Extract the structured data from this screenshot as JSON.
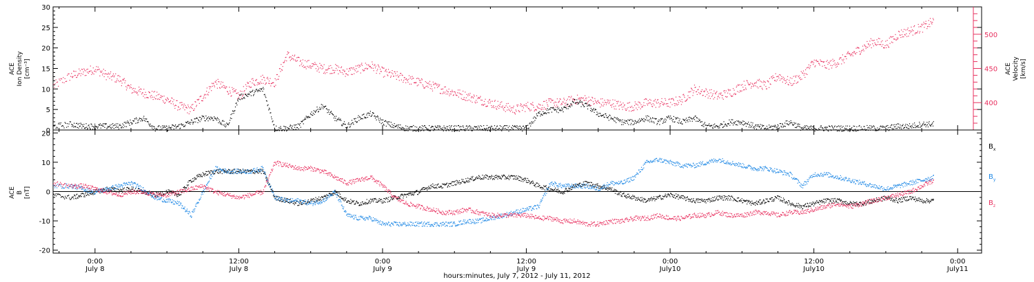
{
  "colors": {
    "black": "#000000",
    "pink": "#e8305f",
    "blue": "#1e88e5"
  },
  "xaxis": {
    "title": "hours:minutes, July  7, 2012 - July 11, 2012",
    "ticks": [
      {
        "t": 0,
        "time": "0:00",
        "date": "July 8"
      },
      {
        "t": 12,
        "time": "12:00",
        "date": "July 8"
      },
      {
        "t": 24,
        "time": "0:00",
        "date": "July 9"
      },
      {
        "t": 36,
        "time": "12:00",
        "date": "July 9"
      },
      {
        "t": 48,
        "time": "0:00",
        "date": "July10"
      },
      {
        "t": 60,
        "time": "12:00",
        "date": "July10"
      },
      {
        "t": 72,
        "time": "0:00",
        "date": "July11"
      }
    ],
    "range": [
      -3.5,
      74.0
    ]
  },
  "chart_data": [
    {
      "type": "scatter",
      "panel": "top",
      "ylabel_lines": [
        "ACE",
        "Ion Density",
        "[cm⁻³]"
      ],
      "ylim": [
        0,
        30
      ],
      "yticks": [
        0,
        5,
        10,
        15,
        20,
        25,
        30
      ],
      "y2label_lines": [
        "ACE",
        "Velocity",
        "[km/s]"
      ],
      "y2lim": [
        360,
        540
      ],
      "y2ticks": [
        400,
        450,
        500
      ],
      "series": [
        {
          "axis": "left",
          "color": "black",
          "x": [
            -3.5,
            -2,
            -1,
            0,
            1,
            2,
            3,
            4,
            5,
            6,
            7,
            8,
            9,
            10,
            11,
            12,
            13,
            14,
            15,
            16,
            17,
            18,
            19,
            20,
            21,
            22,
            23,
            24,
            25,
            26,
            27,
            28,
            29,
            30,
            31,
            32,
            33,
            34,
            35,
            36,
            37,
            38,
            39,
            40,
            41,
            42,
            43,
            44,
            45,
            46,
            47,
            48,
            49,
            50,
            51,
            52,
            53,
            54,
            55,
            56,
            57,
            58,
            59,
            60,
            61,
            62,
            63,
            64,
            65,
            66,
            67,
            68,
            69,
            70
          ],
          "y": [
            1,
            1.5,
            1,
            1,
            1,
            1,
            2,
            3,
            0.5,
            0.5,
            1,
            2,
            3,
            3,
            1,
            8,
            9,
            10,
            0.5,
            0.5,
            1,
            4,
            6,
            3,
            1,
            3,
            4,
            2,
            1,
            0.5,
            0.5,
            0.5,
            0.5,
            0.5,
            0.5,
            0.5,
            0.5,
            0.5,
            0.5,
            0.5,
            4,
            5,
            5,
            7,
            6,
            4,
            3,
            2,
            2,
            3,
            2,
            3,
            2,
            3,
            1,
            1,
            2,
            2,
            1,
            0.5,
            1,
            2,
            0.5,
            0.5,
            0.5,
            0.5,
            0.5,
            0.5,
            0.5,
            0.5,
            1,
            1,
            1.5,
            1.5
          ]
        },
        {
          "axis": "right",
          "color": "pink",
          "x": [
            -3.5,
            -2,
            -1,
            0,
            1,
            2,
            3,
            4,
            5,
            6,
            7,
            8,
            9,
            10,
            11,
            12,
            13,
            14,
            15,
            16,
            17,
            18,
            19,
            20,
            21,
            22,
            23,
            24,
            25,
            26,
            27,
            28,
            29,
            30,
            31,
            32,
            33,
            34,
            35,
            36,
            37,
            38,
            39,
            40,
            41,
            42,
            43,
            44,
            45,
            46,
            47,
            48,
            49,
            50,
            51,
            52,
            53,
            54,
            55,
            56,
            57,
            58,
            59,
            60,
            61,
            62,
            63,
            64,
            65,
            66,
            67,
            68,
            69,
            70
          ],
          "y": [
            425,
            440,
            445,
            450,
            440,
            435,
            420,
            415,
            410,
            405,
            395,
            390,
            410,
            430,
            420,
            410,
            430,
            435,
            430,
            470,
            460,
            455,
            450,
            450,
            445,
            450,
            455,
            445,
            440,
            435,
            430,
            425,
            420,
            415,
            410,
            405,
            400,
            395,
            390,
            395,
            395,
            400,
            400,
            405,
            405,
            400,
            400,
            395,
            395,
            400,
            400,
            400,
            405,
            420,
            415,
            410,
            415,
            425,
            430,
            425,
            440,
            430,
            440,
            460,
            455,
            460,
            470,
            480,
            490,
            485,
            500,
            505,
            510,
            520
          ]
        }
      ]
    },
    {
      "type": "scatter",
      "panel": "bottom",
      "ylabel_lines": [
        "ACE",
        "B",
        "[nT]"
      ],
      "ylim": [
        -21,
        21
      ],
      "yticks": [
        -20,
        -10,
        0,
        10,
        20
      ],
      "legend_position": "right",
      "series": [
        {
          "name": "Bx",
          "color": "black",
          "x": [
            -3.5,
            -2,
            -1,
            0,
            1,
            2,
            3,
            4,
            5,
            6,
            7,
            8,
            9,
            10,
            11,
            12,
            13,
            14,
            15,
            16,
            17,
            18,
            19,
            20,
            21,
            22,
            23,
            24,
            25,
            26,
            27,
            28,
            29,
            30,
            31,
            32,
            33,
            34,
            35,
            36,
            37,
            38,
            39,
            40,
            41,
            42,
            43,
            44,
            45,
            46,
            47,
            48,
            49,
            50,
            51,
            52,
            53,
            54,
            55,
            56,
            57,
            58,
            59,
            60,
            61,
            62,
            63,
            64,
            65,
            66,
            67,
            68,
            69,
            70
          ],
          "y": [
            -1,
            -2,
            -1,
            0,
            1,
            0.5,
            1,
            0,
            -1,
            0,
            -1,
            4,
            6,
            7,
            7,
            7,
            7,
            7,
            -2,
            -3,
            -4,
            -3,
            -2,
            0,
            -3,
            -4,
            -3,
            -3,
            -2,
            -1,
            0,
            2,
            2,
            3,
            4,
            5,
            5,
            5,
            5,
            4,
            2,
            1,
            0,
            2,
            3,
            2,
            1,
            -1,
            -2,
            -3,
            -2,
            -1,
            -2,
            -3,
            -3,
            -2,
            -2,
            -3,
            -4,
            -3,
            -2,
            -4,
            -5,
            -4,
            -3,
            -3,
            -4,
            -4,
            -3,
            -2,
            -3,
            -2,
            -3,
            -3
          ]
        },
        {
          "name": "By",
          "color": "blue",
          "x": [
            -3.5,
            -2,
            -1,
            0,
            1,
            2,
            3,
            4,
            5,
            6,
            7,
            8,
            9,
            10,
            11,
            12,
            13,
            14,
            15,
            16,
            17,
            18,
            19,
            20,
            21,
            22,
            23,
            24,
            25,
            26,
            27,
            28,
            29,
            30,
            31,
            32,
            33,
            34,
            35,
            36,
            37,
            38,
            39,
            40,
            41,
            42,
            43,
            44,
            45,
            46,
            47,
            48,
            49,
            50,
            51,
            52,
            53,
            54,
            55,
            56,
            57,
            58,
            59,
            60,
            61,
            62,
            63,
            64,
            65,
            66,
            67,
            68,
            69,
            70
          ],
          "y": [
            2,
            2,
            1,
            0,
            1,
            2,
            3,
            1,
            -2,
            -3,
            -4,
            -8,
            0,
            8,
            7,
            7,
            7,
            8,
            -2,
            -3,
            -3,
            -4,
            -3,
            0,
            -8,
            -9,
            -9,
            -11,
            -11,
            -11,
            -11,
            -11,
            -11,
            -11,
            -10,
            -10,
            -9,
            -8,
            -7,
            -6,
            -5,
            3,
            2,
            2,
            2,
            1,
            3,
            3,
            5,
            10,
            11,
            10,
            9,
            9,
            10,
            11,
            10,
            9,
            8,
            8,
            7,
            6,
            2,
            6,
            6,
            5,
            4,
            3,
            2,
            1,
            2,
            3,
            4,
            5
          ]
        },
        {
          "name": "Bz",
          "color": "pink",
          "x": [
            -3.5,
            -2,
            -1,
            0,
            1,
            2,
            3,
            4,
            5,
            6,
            7,
            8,
            9,
            10,
            11,
            12,
            13,
            14,
            15,
            16,
            17,
            18,
            19,
            20,
            21,
            22,
            23,
            24,
            25,
            26,
            27,
            28,
            29,
            30,
            31,
            32,
            33,
            34,
            35,
            36,
            37,
            38,
            39,
            40,
            41,
            42,
            43,
            44,
            45,
            46,
            47,
            48,
            49,
            50,
            51,
            52,
            53,
            54,
            55,
            56,
            57,
            58,
            59,
            60,
            61,
            62,
            63,
            64,
            65,
            66,
            67,
            68,
            69,
            70
          ],
          "y": [
            3,
            2,
            2,
            1,
            0,
            -1,
            0,
            0,
            -1,
            -1,
            0,
            1,
            2,
            0,
            -1,
            -2,
            -1,
            0,
            10,
            9,
            8,
            8,
            7,
            5,
            3,
            4,
            5,
            2,
            -2,
            -4,
            -5,
            -6,
            -7,
            -7,
            -6,
            -7,
            -8,
            -8,
            -8,
            -8,
            -9,
            -9,
            -10,
            -10,
            -11,
            -11,
            -10,
            -10,
            -9,
            -9,
            -8,
            -9,
            -9,
            -8,
            -8,
            -7,
            -8,
            -8,
            -7,
            -7,
            -8,
            -7,
            -7,
            -6,
            -5,
            -4,
            -5,
            -4,
            -3,
            -2,
            -1,
            0,
            2,
            4
          ]
        }
      ]
    }
  ]
}
